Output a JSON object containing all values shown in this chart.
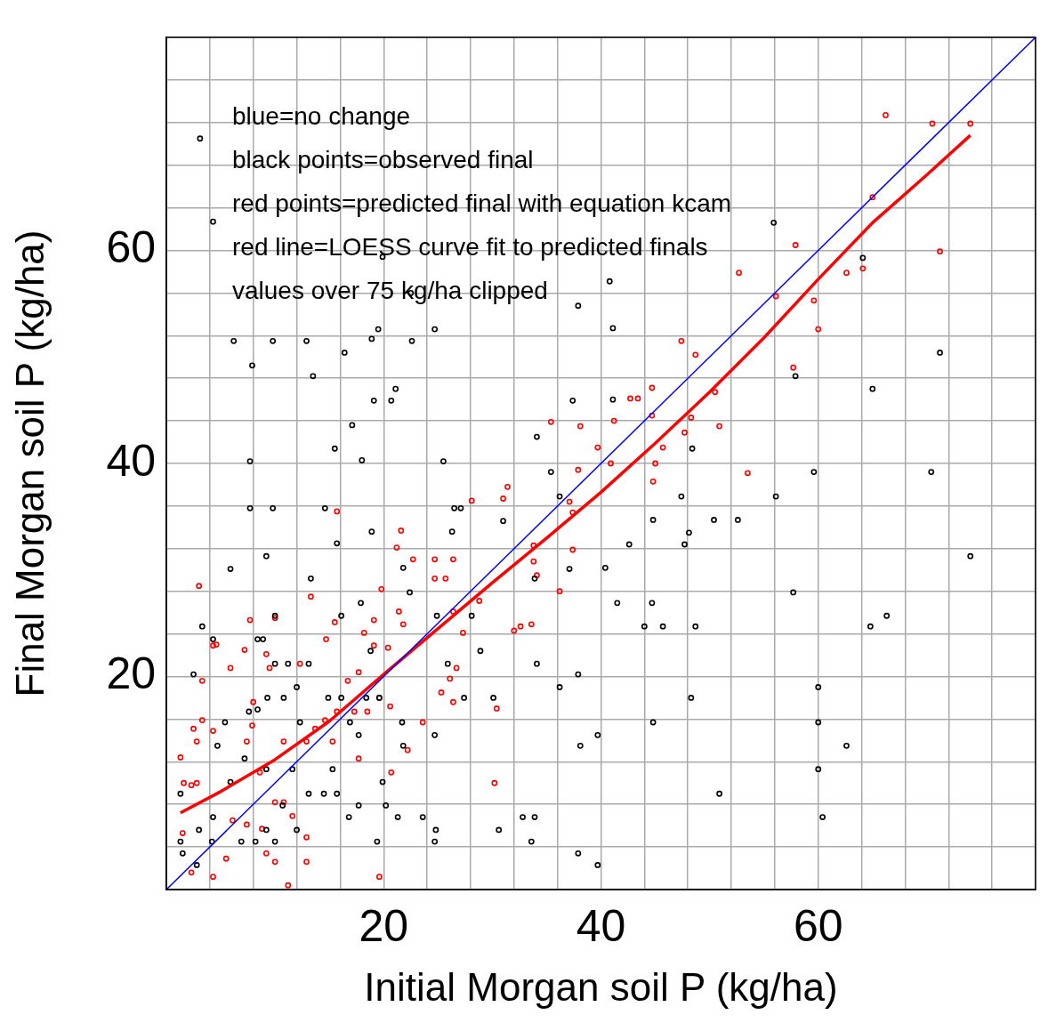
{
  "chart_data": {
    "type": "scatter",
    "xlabel": "Initial Morgan soil P (kg/ha)",
    "ylabel": "Final Morgan soil P (kg/ha)",
    "xlim": [
      0,
      80
    ],
    "ylim": [
      0,
      80
    ],
    "xticks": [
      {
        "value": 0,
        "label": null
      },
      {
        "value": 4,
        "label": null
      },
      {
        "value": 8,
        "label": null
      },
      {
        "value": 12,
        "label": null
      },
      {
        "value": 16,
        "label": null
      },
      20,
      {
        "value": 24,
        "label": null
      },
      {
        "value": 28,
        "label": null
      },
      {
        "value": 32,
        "label": null
      },
      {
        "value": 36,
        "label": null
      },
      40,
      {
        "value": 44,
        "label": null
      },
      {
        "value": 48,
        "label": null
      },
      {
        "value": 52,
        "label": null
      },
      {
        "value": 56,
        "label": null
      },
      60,
      {
        "value": 64,
        "label": null
      },
      {
        "value": 68,
        "label": null
      },
      {
        "value": 72,
        "label": null
      },
      {
        "value": 76,
        "label": null
      },
      {
        "value": 80,
        "label": null
      }
    ],
    "yticks": [
      {
        "value": 0,
        "label": null
      },
      {
        "value": 4,
        "label": null
      },
      {
        "value": 8,
        "label": null
      },
      {
        "value": 12,
        "label": null
      },
      {
        "value": 16,
        "label": null
      },
      20,
      {
        "value": 24,
        "label": null
      },
      {
        "value": 28,
        "label": null
      },
      {
        "value": 32,
        "label": null
      },
      {
        "value": 36,
        "label": null
      },
      40,
      {
        "value": 44,
        "label": null
      },
      {
        "value": 48,
        "label": null
      },
      {
        "value": 52,
        "label": null
      },
      {
        "value": 56,
        "label": null
      },
      60,
      {
        "value": 64,
        "label": null
      },
      {
        "value": 68,
        "label": null
      },
      {
        "value": 72,
        "label": null
      },
      {
        "value": 76,
        "label": null
      },
      {
        "value": 80,
        "label": null
      }
    ],
    "grid": true,
    "marker": "circle",
    "annotations": [
      "blue=no change",
      "black points=observed final",
      "red points=predicted final with equation kcam",
      "red line=LOESS curve fit to predicted finals",
      "values over 75 kg/ha clipped"
    ],
    "series": [
      {
        "type": "line",
        "color": "#0000ff",
        "marker": "none",
        "x": [
          0,
          80
        ],
        "values": [
          0,
          80
        ]
      },
      {
        "color": "#000000",
        "x": [
          3.1,
          4.3,
          6.2,
          7.9,
          9.8,
          12.9,
          13.5,
          16.4,
          15.5,
          17.1,
          18.0,
          19.5,
          18.9,
          22.6,
          24.7,
          19.1,
          21.1,
          20.7,
          19.9,
          22.5,
          7.7,
          7.7,
          9.8,
          9.2,
          5.9,
          15.7,
          14.6,
          18.9,
          25.5,
          26.5,
          27.1,
          26.3,
          31.0,
          34.1,
          35.4,
          36.2,
          37.4,
          37.9,
          41.1,
          40.8,
          41.1,
          42.6,
          44.8,
          33.9,
          37.1,
          40.4,
          41.5,
          44.7,
          44.0,
          45.7,
          47.4,
          47.7,
          48.1,
          48.4,
          48.7,
          50.4,
          52.6,
          56.1,
          55.9,
          57.7,
          57.9,
          59.6,
          64.1,
          65.0,
          64.8,
          66.3,
          71.2,
          70.4,
          74.0,
          60.0,
          60.0,
          60.0,
          60.4,
          62.6,
          50.9,
          48.3,
          44.8,
          39.7,
          39.7,
          37.9,
          38.1,
          37.9,
          36.2,
          34.1,
          32.8,
          33.9,
          33.6,
          30.6,
          30.1,
          28.9,
          28.1,
          27.4,
          25.9,
          24.9,
          24.7,
          24.8,
          24.7,
          23.6,
          21.8,
          21.3,
          22.4,
          21.8,
          19.4,
          20.2,
          17.7,
          16.8,
          15.7,
          14.5,
          13.1,
          12.0,
          10.7,
          10.0,
          9.2,
          8.2,
          6.9,
          5.9,
          4.7,
          4.3,
          4.2,
          3.0,
          2.8,
          1.3,
          1.5,
          1.3,
          2.5,
          3.3,
          4.3,
          8.4,
          8.9,
          10.0,
          10.0,
          11.2,
          13.3,
          13.1,
          16.1,
          17.9,
          18.8,
          9.3,
          8.4,
          7.6,
          10.8,
          12.0,
          12.3,
          14.9,
          16.1,
          16.9,
          17.7,
          15.3,
          11.6,
          9.2,
          7.2,
          5.4,
          18.4,
          19.6,
          21.7,
          19.9
        ],
        "values": [
          70.5,
          62.7,
          51.5,
          49.2,
          51.5,
          51.5,
          48.2,
          50.4,
          41.4,
          43.6,
          40.3,
          52.6,
          51.7,
          51.5,
          52.6,
          45.9,
          47.0,
          45.9,
          59.4,
          56.0,
          40.2,
          35.8,
          35.8,
          31.3,
          30.1,
          32.5,
          35.8,
          33.6,
          40.2,
          35.8,
          35.8,
          33.6,
          34.6,
          42.5,
          39.2,
          36.9,
          45.9,
          54.8,
          52.7,
          57.1,
          46.0,
          32.4,
          34.7,
          29.2,
          30.1,
          30.2,
          26.9,
          26.9,
          24.7,
          24.7,
          36.9,
          32.4,
          33.5,
          41.4,
          24.7,
          34.7,
          34.7,
          36.9,
          62.6,
          27.9,
          48.2,
          39.2,
          59.3,
          47.0,
          24.7,
          25.7,
          50.4,
          39.2,
          31.3,
          19.0,
          15.7,
          11.3,
          6.8,
          13.5,
          9.0,
          18.0,
          15.7,
          14.5,
          2.3,
          3.4,
          13.5,
          20.2,
          19.0,
          21.2,
          6.8,
          6.8,
          4.5,
          5.6,
          18.0,
          22.4,
          25.7,
          18.0,
          21.2,
          25.7,
          14.5,
          5.6,
          4.5,
          6.8,
          13.5,
          6.8,
          27.9,
          30.2,
          4.5,
          7.9,
          7.9,
          6.8,
          9.0,
          9.0,
          9.0,
          5.6,
          7.9,
          4.5,
          5.6,
          4.5,
          4.5,
          10.1,
          13.5,
          6.8,
          4.5,
          5.6,
          2.3,
          4.5,
          3.4,
          9.0,
          20.2,
          24.7,
          23.5,
          23.5,
          23.5,
          25.7,
          21.2,
          21.2,
          29.2,
          21.2,
          25.7,
          26.9,
          22.4,
          18.0,
          16.9,
          16.7,
          18.0,
          19.0,
          15.7,
          18.0,
          18.0,
          15.7,
          14.5,
          11.3,
          11.3,
          11.3,
          12.3,
          15.7,
          18.0,
          18.0,
          15.7,
          10.1
        ]
      },
      {
        "color": "#ff0000",
        "x": [
          66.2,
          70.5,
          74.0,
          65.0,
          57.9,
          71.2,
          52.7,
          62.6,
          64.1,
          59.6,
          60.0,
          56.1,
          47.4,
          48.7,
          57.7,
          50.5,
          44.7,
          43.4,
          42.7,
          48.3,
          50.9,
          47.7,
          44.7,
          41.2,
          38.1,
          39.7,
          40.9,
          45.0,
          45.7,
          37.9,
          44.8,
          53.5,
          35.4,
          37.1,
          37.4,
          37.4,
          36.2,
          33.8,
          33.8,
          34.1,
          33.6,
          32.6,
          32.0,
          31.4,
          31.0,
          28.1,
          28.8,
          26.4,
          24.7,
          25.7,
          24.7,
          26.4,
          27.3,
          26.7,
          26.1,
          26.4,
          25.3,
          23.6,
          21.6,
          21.2,
          22.7,
          21.8,
          21.4,
          19.8,
          19.1,
          18.2,
          19.1,
          17.7,
          19.6,
          20.6,
          18.5,
          17.7,
          20.7,
          19.6,
          15.7,
          15.5,
          14.7,
          13.3,
          12.3,
          13.7,
          14.6,
          15.7,
          15.3,
          12.9,
          10.8,
          10.0,
          9.2,
          9.5,
          8.0,
          7.9,
          8.6,
          10.0,
          10.8,
          11.6,
          12.9,
          12.9,
          11.2,
          10.0,
          9.2,
          8.8,
          7.4,
          6.1,
          5.5,
          4.3,
          2.3,
          1.5,
          2.3,
          2.8,
          1.6,
          1.3,
          2.5,
          2.8,
          3.3,
          4.3,
          3.3,
          3.0,
          4.3,
          4.6,
          5.9,
          7.2,
          7.7,
          7.4,
          30.4,
          30.2,
          22.2,
          17.3,
          16.7,
          20.4
        ],
        "values": [
          72.7,
          71.9,
          71.9,
          65.0,
          60.5,
          59.9,
          57.9,
          57.9,
          58.3,
          55.3,
          52.6,
          55.7,
          51.5,
          50.2,
          49.0,
          46.7,
          47.1,
          46.1,
          46.1,
          44.3,
          43.5,
          42.9,
          44.5,
          44.0,
          43.5,
          41.5,
          40.0,
          40.0,
          41.5,
          39.4,
          38.3,
          39.1,
          43.9,
          36.4,
          35.4,
          31.9,
          28.0,
          32.3,
          30.8,
          29.5,
          24.9,
          24.7,
          24.3,
          37.8,
          36.7,
          36.5,
          27.1,
          31.0,
          31.0,
          29.2,
          29.2,
          26.1,
          24.1,
          20.8,
          19.8,
          17.6,
          18.5,
          15.7,
          33.7,
          32.1,
          31.0,
          24.9,
          26.1,
          28.2,
          25.3,
          24.1,
          22.9,
          20.4,
          18.0,
          17.2,
          16.7,
          12.3,
          11.0,
          1.2,
          35.5,
          25.1,
          23.5,
          27.5,
          21.2,
          15.1,
          15.9,
          16.7,
          13.9,
          13.9,
          13.9,
          25.5,
          22.1,
          20.8,
          17.6,
          15.4,
          11.0,
          8.2,
          8.2,
          6.9,
          4.9,
          2.6,
          0.4,
          2.6,
          3.4,
          5.7,
          6.1,
          6.5,
          2.9,
          1.2,
          1.6,
          5.3,
          9.8,
          10.0,
          10.0,
          12.4,
          15.1,
          13.9,
          15.9,
          14.9,
          19.6,
          28.5,
          22.9,
          23.0,
          20.8,
          22.5,
          25.3,
          13.9,
          17.0,
          10.0,
          13.1,
          16.7,
          19.6,
          22.7
        ]
      },
      {
        "type": "line",
        "color": "#ff0000",
        "marker": "none",
        "x": [
          1.3,
          5,
          10,
          15,
          20,
          25,
          30,
          35,
          40,
          45,
          50,
          55,
          60,
          65,
          70,
          74
        ],
        "values": [
          7.2,
          9.2,
          12.2,
          15.8,
          20.2,
          24.5,
          28.8,
          33.0,
          37.3,
          41.9,
          46.7,
          51.8,
          57.3,
          62.6,
          67.1,
          70.8
        ]
      }
    ]
  }
}
